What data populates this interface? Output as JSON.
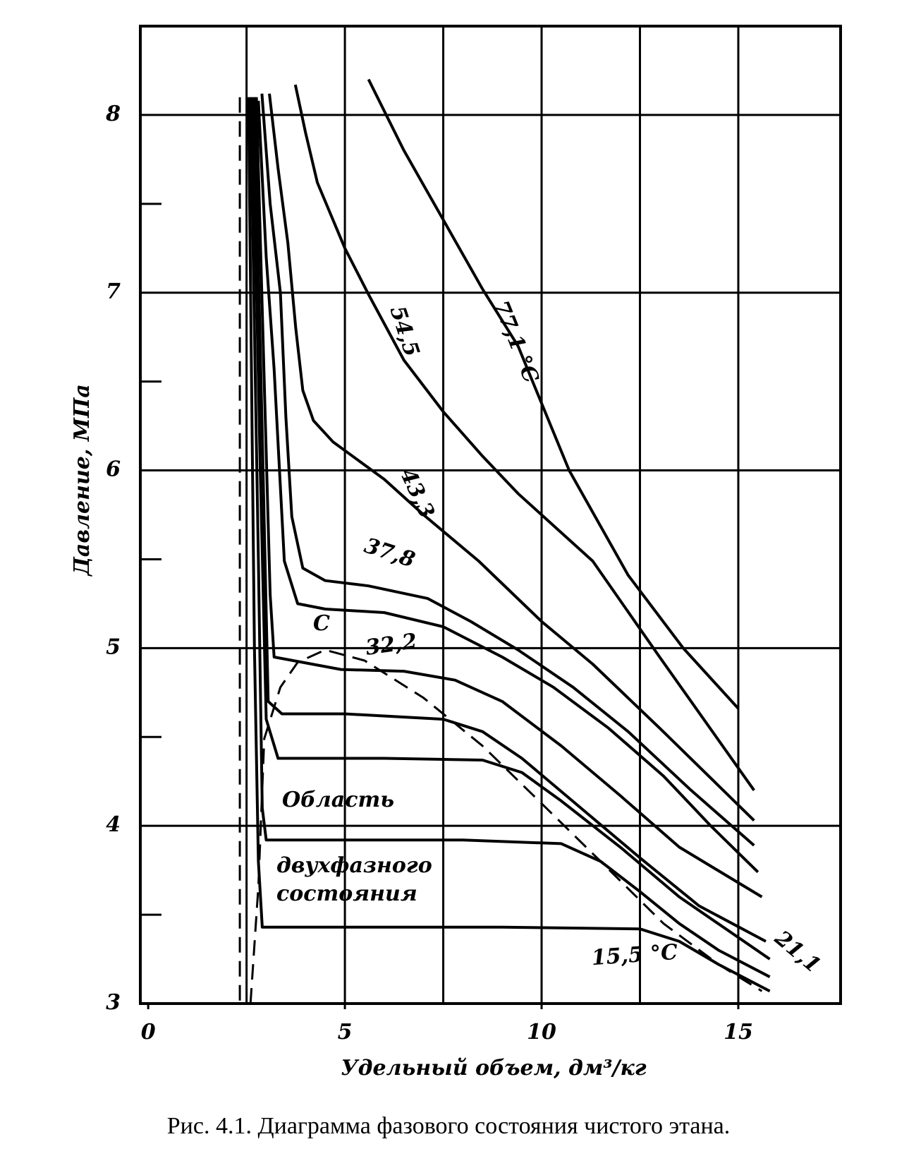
{
  "chart_data": {
    "type": "line",
    "x_label": "Удельный объем, дм³/кг",
    "y_label": "Давление, МПа",
    "caption": "Рис. 4.1. Диаграмма фазового состояния чистого этана.",
    "color": "#000000",
    "xlim": [
      -0.2,
      17.6
    ],
    "xticks": [
      0,
      5,
      10,
      15
    ],
    "xgrid": [
      2.5,
      5,
      7.5,
      10,
      12.5,
      15
    ],
    "ylim": [
      3,
      8.5
    ],
    "yticks": [
      3,
      4,
      5,
      6,
      7,
      8
    ],
    "yminor": [
      3.5,
      4.5,
      5.5,
      6.5,
      7.5
    ],
    "grid": true,
    "critical_point_label": "С",
    "region_label": [
      "Область",
      "двухфазного",
      "состояния"
    ],
    "series": [
      {
        "name": "77,1 °C",
        "x": [
          5.6,
          6.5,
          7.5,
          8.5,
          9.4,
          10.7,
          12.2,
          13.6,
          15.0
        ],
        "values": [
          8.2,
          7.8,
          7.41,
          7.02,
          6.7,
          6.0,
          5.41,
          5.0,
          4.66
        ]
      },
      {
        "name": "54,5",
        "x": [
          3.74,
          4.0,
          4.3,
          5.0,
          5.6,
          6.5,
          7.5,
          8.5,
          9.4,
          11.3,
          13.0,
          15.4
        ],
        "values": [
          8.17,
          7.9,
          7.62,
          7.25,
          6.99,
          6.62,
          6.33,
          6.08,
          5.87,
          5.49,
          4.95,
          4.2
        ]
      },
      {
        "name": "43,3",
        "x": [
          3.08,
          3.3,
          3.55,
          3.75,
          3.93,
          4.2,
          4.7,
          6.0,
          7.0,
          8.4,
          10.0,
          11.3,
          13.0,
          15.4
        ],
        "values": [
          8.12,
          7.7,
          7.28,
          6.8,
          6.45,
          6.28,
          6.16,
          5.95,
          5.75,
          5.49,
          5.15,
          4.91,
          4.55,
          4.03
        ]
      },
      {
        "name": "37,8",
        "x": [
          2.89,
          3.1,
          3.36,
          3.5,
          3.65,
          3.93,
          4.5,
          5.6,
          7.1,
          8.2,
          9.4,
          10.8,
          12.2,
          13.8,
          15.4
        ],
        "values": [
          8.12,
          7.5,
          7.0,
          6.3,
          5.74,
          5.45,
          5.38,
          5.35,
          5.28,
          5.15,
          4.99,
          4.78,
          4.53,
          4.2,
          3.89
        ]
      },
      {
        "name": "32,2",
        "x": [
          2.8,
          3.0,
          3.2,
          3.46,
          3.8,
          4.5,
          6.0,
          7.5,
          9.0,
          10.3,
          11.7,
          13.1,
          14.3,
          15.5
        ],
        "values": [
          8.08,
          7.2,
          6.57,
          5.49,
          5.25,
          5.22,
          5.2,
          5.12,
          4.95,
          4.78,
          4.55,
          4.28,
          4.0,
          3.74
        ]
      },
      {
        "x": [
          2.75,
          2.95,
          3.1,
          3.2,
          4.9,
          6.5,
          7.8,
          9.0,
          10.5,
          12.0,
          13.5,
          15.6
        ],
        "values": [
          8.1,
          6.5,
          5.3,
          4.95,
          4.88,
          4.87,
          4.82,
          4.7,
          4.45,
          4.17,
          3.88,
          3.6
        ]
      },
      {
        "x": [
          2.7,
          2.9,
          3.05,
          3.4,
          5.0,
          7.5,
          8.5,
          9.5,
          11.0,
          12.5,
          14.0,
          15.7
        ],
        "values": [
          8.1,
          6.2,
          4.7,
          4.63,
          4.63,
          4.6,
          4.53,
          4.38,
          4.1,
          3.82,
          3.55,
          3.35
        ]
      },
      {
        "x": [
          2.65,
          2.85,
          3.0,
          3.3,
          6.0,
          8.5,
          9.5,
          10.5,
          12.0,
          13.5,
          15.8
        ],
        "values": [
          8.1,
          6.0,
          4.6,
          4.38,
          4.38,
          4.37,
          4.3,
          4.14,
          3.88,
          3.6,
          3.25
        ]
      },
      {
        "name": "21,1",
        "x": [
          2.6,
          2.8,
          2.9,
          3.0,
          8.0,
          10.5,
          11.5,
          12.5,
          13.5,
          14.5,
          15.8
        ],
        "values": [
          8.1,
          5.5,
          4.1,
          3.92,
          3.92,
          3.9,
          3.8,
          3.63,
          3.45,
          3.3,
          3.15
        ]
      },
      {
        "name": "15,5 °C",
        "x": [
          2.55,
          2.7,
          2.8,
          2.9,
          9.0,
          12.5,
          13.5,
          14.5,
          15.8
        ],
        "values": [
          8.1,
          5.0,
          3.8,
          3.43,
          3.43,
          3.42,
          3.35,
          3.22,
          3.07
        ]
      },
      {
        "dashed": true,
        "x": [
          2.6,
          2.8,
          2.95,
          3.36,
          3.8,
          4.5,
          5.5,
          7.0,
          8.5,
          9.75,
          11.5,
          13.1,
          14.5,
          15.6
        ],
        "values": [
          3.0,
          3.66,
          4.49,
          4.78,
          4.92,
          4.99,
          4.93,
          4.72,
          4.45,
          4.18,
          3.8,
          3.45,
          3.22,
          3.07
        ]
      },
      {
        "dashed": true,
        "x": [
          2.33,
          2.33
        ],
        "values": [
          8.1,
          3.0
        ]
      }
    ]
  }
}
